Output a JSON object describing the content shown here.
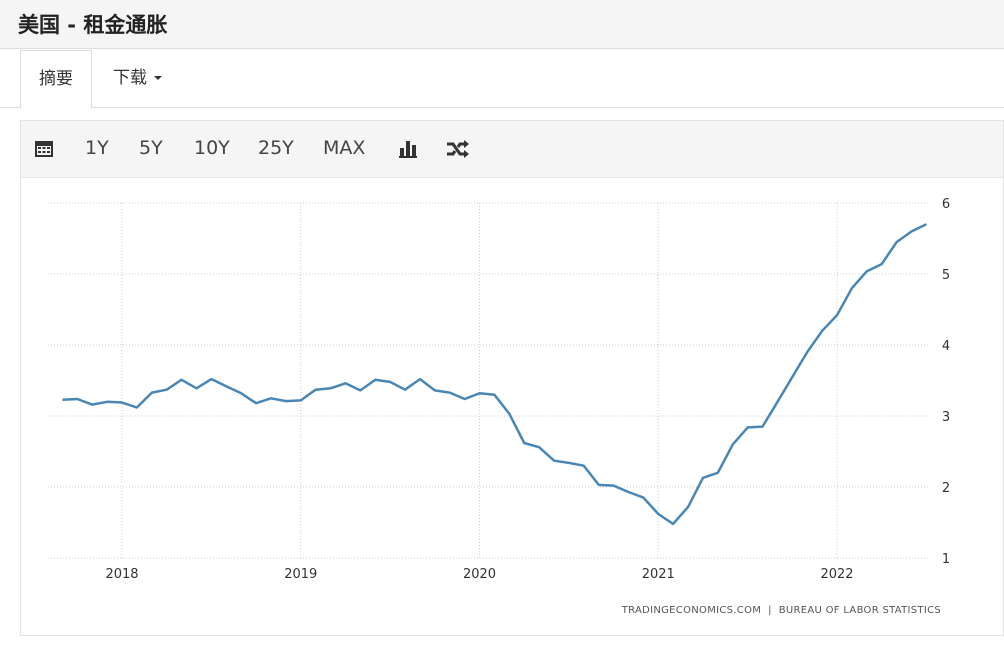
{
  "header": {
    "title": "美国 - 租金通胀"
  },
  "tabs": [
    "摘要",
    "下载"
  ],
  "toolbar": [
    "1Y",
    "5Y",
    "10Y",
    "25Y",
    "MAX"
  ],
  "chart_data": {
    "type": "line",
    "x": [
      2017.667,
      2017.75,
      2017.833,
      2017.917,
      2018,
      2018.083,
      2018.167,
      2018.25,
      2018.333,
      2018.417,
      2018.5,
      2018.583,
      2018.667,
      2018.75,
      2018.833,
      2018.917,
      2019,
      2019.083,
      2019.167,
      2019.25,
      2019.333,
      2019.417,
      2019.5,
      2019.583,
      2019.667,
      2019.75,
      2019.833,
      2019.917,
      2020,
      2020.083,
      2020.167,
      2020.25,
      2020.333,
      2020.417,
      2020.5,
      2020.583,
      2020.667,
      2020.75,
      2020.833,
      2020.917,
      2021,
      2021.083,
      2021.167,
      2021.25,
      2021.333,
      2021.417,
      2021.5,
      2021.583,
      2021.667,
      2021.75,
      2021.833,
      2021.917,
      2022,
      2022.083,
      2022.167,
      2022.25,
      2022.333,
      2022.417,
      2022.5
    ],
    "values": [
      3.23,
      3.24,
      3.16,
      3.2,
      3.19,
      3.12,
      3.33,
      3.37,
      3.51,
      3.39,
      3.52,
      3.42,
      3.32,
      3.18,
      3.25,
      3.21,
      3.22,
      3.37,
      3.39,
      3.46,
      3.36,
      3.51,
      3.48,
      3.37,
      3.52,
      3.36,
      3.33,
      3.24,
      3.32,
      3.3,
      3.03,
      2.62,
      2.56,
      2.37,
      2.34,
      2.3,
      2.03,
      2.02,
      1.93,
      1.85,
      1.62,
      1.48,
      1.72,
      2.13,
      2.2,
      2.6,
      2.84,
      2.85,
      3.2,
      3.55,
      3.9,
      4.2,
      4.42,
      4.8,
      5.04,
      5.14,
      5.45,
      5.6,
      5.7
    ],
    "color": "#4a86b5",
    "xlim": [
      2017.586,
      2022.52
    ],
    "xticks": [
      2018,
      2019,
      2020,
      2021,
      2022
    ],
    "ylim": [
      1,
      6
    ],
    "yticks": [
      1,
      2,
      3,
      4,
      5,
      6
    ],
    "grid": true,
    "source": "TRADINGECONOMICS.COM  |  BUREAU OF LABOR STATISTICS"
  }
}
